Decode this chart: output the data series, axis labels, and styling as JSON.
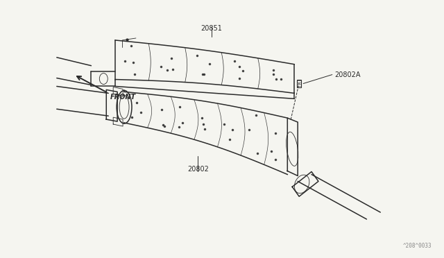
{
  "background_color": "#f5f5f0",
  "line_color": "#2a2a2a",
  "figure_width": 6.4,
  "figure_height": 3.72,
  "dpi": 100,
  "watermark": "^208^0033",
  "label_fontsize": 7.0,
  "label_color": "#222222"
}
